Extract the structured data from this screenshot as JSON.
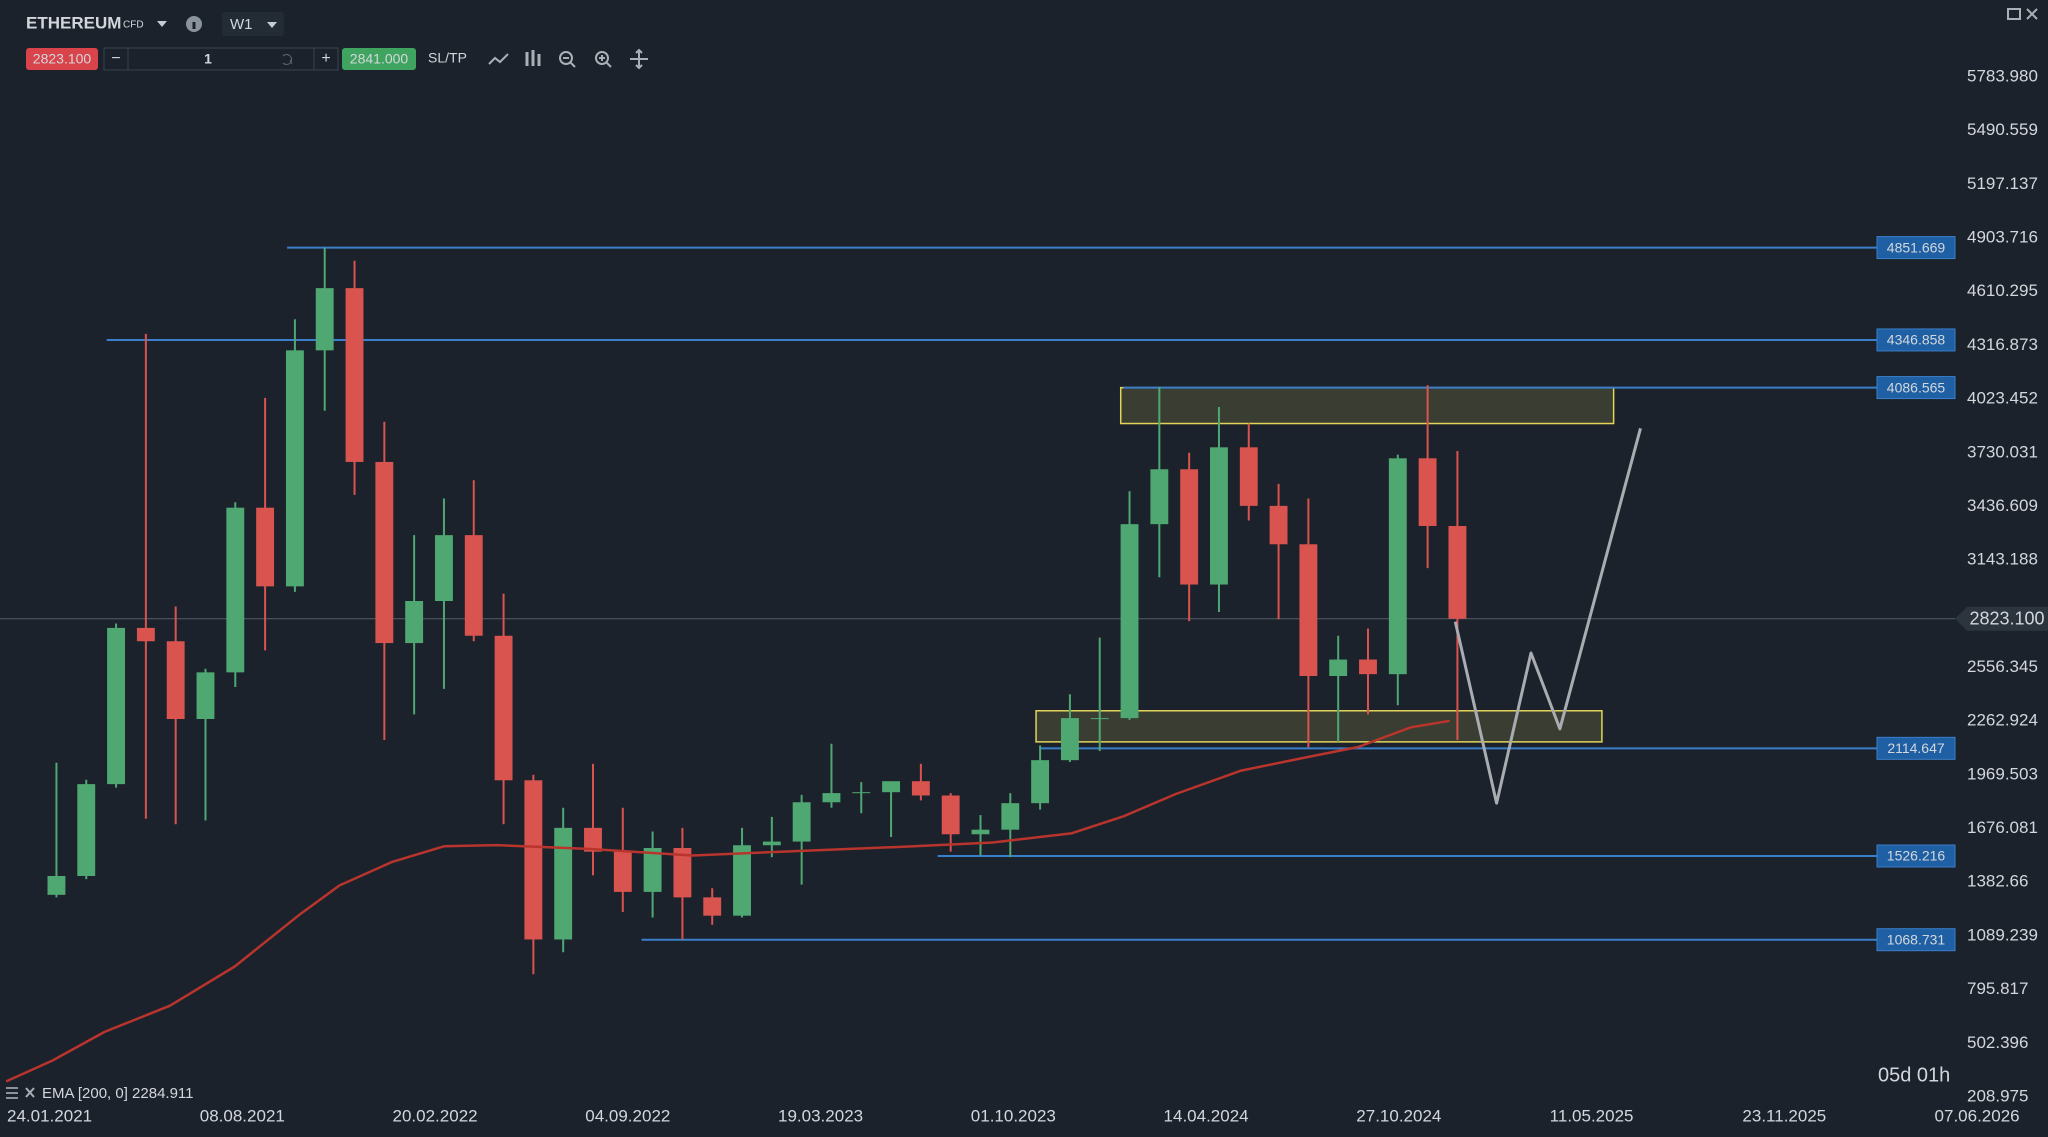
{
  "toolbar": {
    "symbol": "ETHEREUM",
    "tag": "CFD",
    "timeframe": "W1",
    "sell": "2823.100",
    "minus": "−",
    "quantity": "1",
    "plus": "+",
    "buy": "2841.000",
    "sltp": "SL/TP"
  },
  "chart_data": {
    "type": "candlestick",
    "x": [
      1,
      5.33,
      9.66,
      13.99,
      18.32,
      22.65,
      26.98,
      31.31,
      35.64,
      39.97,
      44.3,
      48.63,
      52.96,
      57.29,
      61.62,
      65.95,
      70.28,
      74.61,
      78.94,
      83.27,
      87.6,
      91.93,
      96.26,
      100.59,
      104.92,
      109.25,
      113.58,
      117.91,
      122.24,
      126.57,
      130.9,
      135.23,
      139.56,
      143.89,
      148.22,
      152.55,
      156.88,
      161.21,
      165.54,
      169.87,
      174.2,
      178.53,
      182.86,
      187.19,
      191.52,
      195.85,
      200.18,
      204.51
    ],
    "open": [
      1314,
      1417,
      1919,
      2773,
      2700,
      2275,
      2530,
      3430,
      3000,
      4290,
      4630,
      3680,
      2690,
      2920,
      3280,
      2730,
      1940,
      1070,
      1680,
      1550,
      1330,
      1570,
      1300,
      1200,
      1585,
      1605,
      1820,
      1870,
      1875,
      1935,
      1857,
      1645,
      1670,
      1815,
      2050,
      2280,
      2280,
      3340,
      3640,
      3010,
      3760,
      3440,
      3230,
      2510,
      2600,
      2520,
      3700,
      3330
    ],
    "high": [
      2036,
      1943,
      2797,
      4380,
      2890,
      2550,
      3460,
      4030,
      4460,
      4852,
      4780,
      3900,
      3280,
      3480,
      3580,
      2960,
      1970,
      1790,
      2030,
      1790,
      1660,
      1680,
      1350,
      1680,
      1740,
      1860,
      2140,
      1930,
      1930,
      2030,
      1870,
      1750,
      1870,
      2130,
      2410,
      2720,
      3520,
      4090,
      3730,
      3980,
      3890,
      3560,
      3480,
      2730,
      2770,
      3720,
      4100,
      3740
    ],
    "low": [
      1300,
      1400,
      1900,
      1730,
      1700,
      1720,
      2450,
      2650,
      2970,
      3960,
      3500,
      2160,
      2300,
      2440,
      2700,
      1700,
      880,
      1000,
      1420,
      1220,
      1190,
      1070,
      1150,
      1190,
      1520,
      1370,
      1790,
      1760,
      1630,
      1830,
      1550,
      1530,
      1520,
      1780,
      2040,
      2100,
      2270,
      3050,
      2810,
      2860,
      3360,
      2820,
      2120,
      2150,
      2300,
      2350,
      3100,
      2160
    ],
    "close": [
      1417,
      1919,
      2773,
      2700,
      2275,
      2530,
      3430,
      3000,
      4290,
      4630,
      3680,
      2690,
      2920,
      3280,
      2730,
      1940,
      1070,
      1680,
      1550,
      1330,
      1570,
      1300,
      1200,
      1585,
      1605,
      1820,
      1870,
      1875,
      1935,
      1857,
      1645,
      1670,
      1815,
      2050,
      2280,
      2280,
      3340,
      3640,
      3010,
      3760,
      3440,
      3230,
      2510,
      2600,
      2520,
      3700,
      3330,
      2823
    ],
    "up_color": "#4fa872",
    "down_color": "#d9534f",
    "xlim": [
      -7.2,
      290.3
    ],
    "ylim": [
      170.7,
      6204.9
    ],
    "xticks": [
      {
        "value": 0,
        "label": "24.01.2021"
      },
      {
        "value": 28,
        "label": "08.08.2021"
      },
      {
        "value": 56,
        "label": "20.02.2022"
      },
      {
        "value": 84,
        "label": "04.09.2022"
      },
      {
        "value": 112,
        "label": "19.03.2023"
      },
      {
        "value": 140,
        "label": "01.10.2023"
      },
      {
        "value": 168,
        "label": "14.04.2024"
      },
      {
        "value": 196,
        "label": "27.10.2024"
      },
      {
        "value": 224,
        "label": "11.05.2025"
      },
      {
        "value": 252,
        "label": "23.11.2025"
      },
      {
        "value": 280,
        "label": "07.06.2026"
      }
    ],
    "yticks": [
      {
        "value": 5783.98,
        "label": "5783.980"
      },
      5490.559,
      5197.137,
      4903.716,
      4610.295,
      4316.873,
      4023.452,
      3730.031,
      3436.609,
      3143.188,
      2556.345,
      2262.924,
      1969.503,
      1676.081,
      1382.66,
      1089.239,
      795.817,
      502.396,
      208.975
    ],
    "grid": false,
    "current_price": {
      "value": 2823.1,
      "label": "2823.100"
    },
    "levels": [
      {
        "value": 4851.669,
        "x0": 34.5
      },
      {
        "value": 4346.858,
        "x0": 8.3
      },
      {
        "value": 4086.565,
        "x0": 156
      },
      {
        "value": 2114.647,
        "x0": 144
      },
      {
        "value": 1526.216,
        "x0": 129
      },
      {
        "value": 1068.731,
        "x0": 86
      }
    ],
    "level_color": "#3b7fca",
    "zones": [
      {
        "x0": 155.6,
        "x1": 227.2,
        "y0": 3890,
        "y1": 4086
      },
      {
        "x0": 143.3,
        "x1": 225.5,
        "y0": 2150,
        "y1": 2320
      }
    ],
    "zone_color": "#e3d45a",
    "ema": {
      "label": "EMA [200, 0] 2284.911",
      "color": "#b8342c",
      "x": [
        -6.3,
        0.4,
        8,
        17.5,
        26.9,
        36.4,
        42.1,
        49.7,
        57.3,
        64.9,
        78.2,
        93.4,
        106.6,
        125.6,
        137,
        148.4,
        156,
        163.6,
        173.1,
        182.5,
        190.1,
        197.7,
        203.4
      ],
      "values": [
        294,
        408,
        565,
        708,
        922,
        1208,
        1365,
        1493,
        1579,
        1586,
        1565,
        1529,
        1550,
        1579,
        1600,
        1650,
        1743,
        1865,
        1993,
        2065,
        2122,
        2229,
        2265
      ]
    },
    "projection": {
      "color": "#a9adb2",
      "x": [
        204.2,
        210.2,
        215.2,
        219.4,
        231.1
      ],
      "values": [
        2807,
        1815,
        2636,
        2221,
        3864
      ]
    },
    "countdown": "05d 01h"
  }
}
